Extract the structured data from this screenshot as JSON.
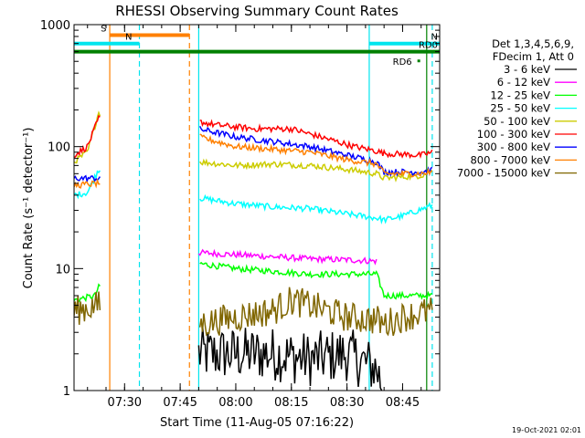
{
  "chart_data": {
    "type": "line",
    "title": "RHESSI Observing Summary Count Rates",
    "xlabel": "Start Time (11-Aug-05 07:16:22)",
    "ylabel": "Count Rate (s⁻¹ detector⁻¹)",
    "y_scale": "log",
    "ylim": [
      1,
      1000
    ],
    "xlim": [
      "07:16:22",
      "08:55:00"
    ],
    "x_ticks": [
      "07:30",
      "07:45",
      "08:00",
      "08:15",
      "08:30",
      "08:45"
    ],
    "y_ticks": [
      "1",
      "10",
      "100",
      "1000"
    ],
    "legend_title": [
      "Det 1,3,4,5,6,9,",
      "FDecim 1, Att 0"
    ],
    "legend_position": "right",
    "footer_date": "19-Oct-2021 02:01",
    "flags": [
      {
        "label": "S",
        "color": "#ff8000",
        "y": 820,
        "start": "07:26:00",
        "end": "07:47:30"
      },
      {
        "label": "N",
        "color": "#00e5ee",
        "y": 700,
        "start": "07:16:22",
        "end": "07:34:00"
      },
      {
        "label": "N",
        "color": "#00e5ee",
        "y": 700,
        "start": "08:36:00",
        "end": "08:55:00"
      },
      {
        "label": "RD0",
        "color": "#008000",
        "y": 600,
        "start": "07:16:22",
        "end": "08:55:00"
      },
      {
        "label": "RD6",
        "color": "#008000",
        "y": 500,
        "start": "08:49:00",
        "end": "08:49:30"
      }
    ],
    "vlines": [
      {
        "t": "07:26:00",
        "color": "#ff8000",
        "style": "solid"
      },
      {
        "t": "07:34:00",
        "color": "#00e5ee",
        "style": "dashed"
      },
      {
        "t": "07:47:30",
        "color": "#ff8000",
        "style": "dashed"
      },
      {
        "t": "07:50:00",
        "color": "#00e5ee",
        "style": "solid"
      },
      {
        "t": "08:36:00",
        "color": "#00e5ee",
        "style": "solid"
      },
      {
        "t": "08:53:00",
        "color": "#00e5ee",
        "style": "dashed"
      },
      {
        "t": "08:51:30",
        "color": "#008000",
        "style": "solid"
      }
    ],
    "series": [
      {
        "name": "3 - 6 keV",
        "color": "#000000",
        "x": [
          "07:50:00",
          "08:00:00",
          "08:10:00",
          "08:20:00",
          "08:30:00",
          "08:38:00",
          "08:40:00"
        ],
        "y": [
          2,
          2,
          2,
          1.8,
          2,
          1.5,
          1
        ]
      },
      {
        "name": "6 - 12 keV",
        "color": "#ff00ff",
        "x": [
          "07:50:00",
          "08:00:00",
          "08:10:00",
          "08:20:00",
          "08:30:00",
          "08:38:00"
        ],
        "y": [
          13.5,
          13,
          12.5,
          12,
          11.8,
          11.5
        ]
      },
      {
        "name": "12 - 25 keV",
        "color": "#00ff00",
        "x": [
          "07:16:22",
          "07:22:00",
          "07:23:00",
          "07:50:00",
          "08:00:00",
          "08:10:00",
          "08:20:00",
          "08:30:00",
          "08:38:00",
          "08:40:00",
          "08:50:00",
          "08:53:00"
        ],
        "y": [
          5.5,
          6,
          7,
          11,
          10,
          9.5,
          9,
          9,
          9,
          6,
          6,
          6
        ]
      },
      {
        "name": "25 - 50 keV",
        "color": "#00ffff",
        "x": [
          "07:16:22",
          "07:20:00",
          "07:23:00",
          "07:50:00",
          "08:00:00",
          "08:10:00",
          "08:20:00",
          "08:30:00",
          "08:38:00",
          "08:40:00",
          "08:45:00",
          "08:53:00"
        ],
        "y": [
          40,
          42,
          65,
          38,
          34,
          32,
          31,
          28,
          26,
          25,
          27,
          33
        ]
      },
      {
        "name": "50 - 100 keV",
        "color": "#cccc00",
        "x": [
          "07:16:22",
          "07:20:00",
          "07:23:00",
          "07:50:00",
          "08:00:00",
          "08:10:00",
          "08:20:00",
          "08:30:00",
          "08:38:00",
          "08:40:00",
          "08:50:00",
          "08:53:00"
        ],
        "y": [
          75,
          90,
          190,
          75,
          70,
          72,
          70,
          65,
          60,
          55,
          58,
          63
        ]
      },
      {
        "name": "100 - 300 keV",
        "color": "#ff0000",
        "x": [
          "07:16:22",
          "07:20:00",
          "07:23:00",
          "07:50:00",
          "07:55:00",
          "08:05:00",
          "08:15:00",
          "08:25:00",
          "08:32:00",
          "08:38:00",
          "08:40:00",
          "08:50:00",
          "08:53:00"
        ],
        "y": [
          85,
          100,
          170,
          160,
          150,
          140,
          140,
          115,
          100,
          92,
          88,
          85,
          90
        ]
      },
      {
        "name": "300 - 800 keV",
        "color": "#0000ff",
        "x": [
          "07:16:22",
          "07:23:00",
          "07:50:00",
          "08:00:00",
          "08:10:00",
          "08:20:00",
          "08:30:00",
          "08:38:00",
          "08:40:00",
          "08:50:00",
          "08:53:00"
        ],
        "y": [
          55,
          55,
          140,
          120,
          110,
          100,
          85,
          75,
          62,
          62,
          64
        ]
      },
      {
        "name": "800 - 7000 keV",
        "color": "#ff8000",
        "x": [
          "07:16:22",
          "07:23:00",
          "07:50:00",
          "08:00:00",
          "08:10:00",
          "08:20:00",
          "08:30:00",
          "08:38:00",
          "08:40:00",
          "08:50:00",
          "08:53:00"
        ],
        "y": [
          48,
          50,
          120,
          100,
          95,
          90,
          78,
          72,
          60,
          60,
          62
        ]
      },
      {
        "name": "7000 - 15000 keV",
        "color": "#806600",
        "x": [
          "07:16:22",
          "07:23:00",
          "07:50:00",
          "08:00:00",
          "08:10:00",
          "08:15:00",
          "08:20:00",
          "08:30:00",
          "08:38:00",
          "08:40:00",
          "08:45:00",
          "08:53:00"
        ],
        "y": [
          4.5,
          5,
          3.5,
          4,
          4.5,
          5.5,
          5,
          4,
          3.8,
          3.5,
          4,
          4.5
        ]
      }
    ]
  }
}
